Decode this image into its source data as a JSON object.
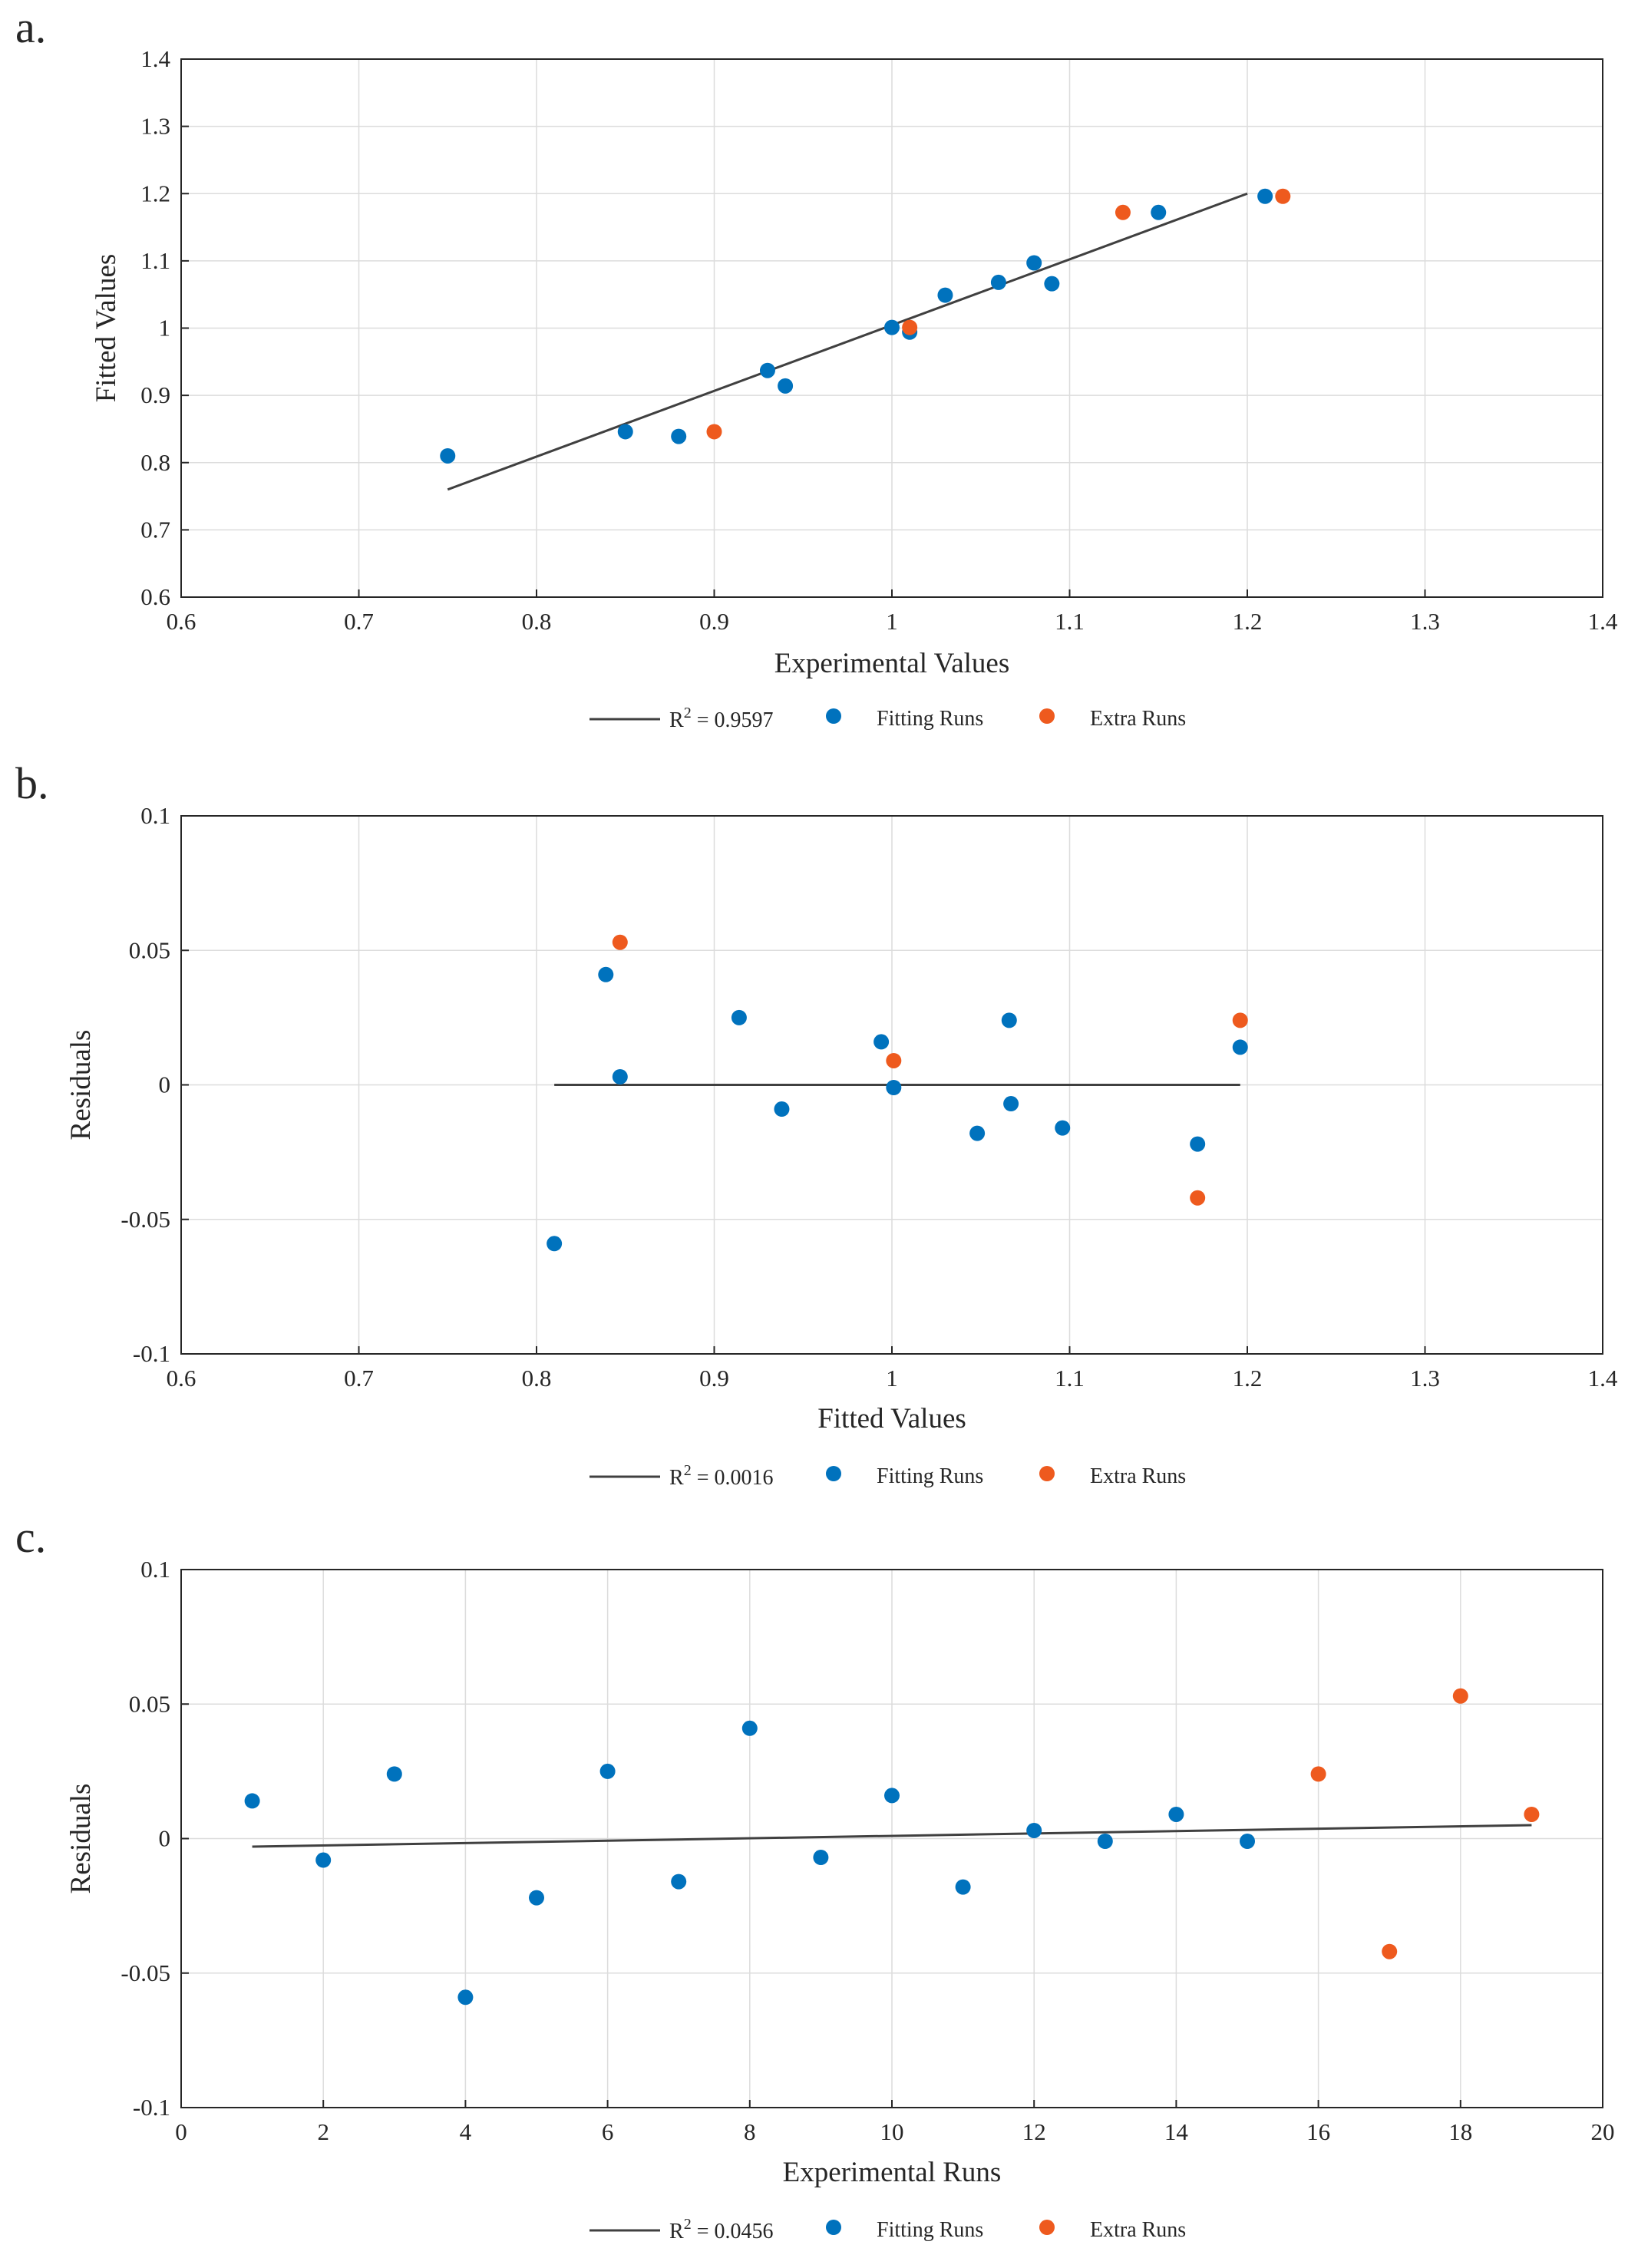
{
  "figure": {
    "colors": {
      "fitting": "#0072BD",
      "extra": "#EE5A1E",
      "fit_line": "#404040",
      "grid": "#dcdcdc",
      "axis": "#262626"
    }
  },
  "chart_data": [
    {
      "panel": "a.",
      "type": "scatter",
      "xlabel": "Experimental Values",
      "ylabel": "Fitted Values",
      "xlim": [
        0.6,
        1.4
      ],
      "ylim": [
        0.6,
        1.4
      ],
      "xticks": [
        0.6,
        0.7,
        0.8,
        0.9,
        1,
        1.1,
        1.2,
        1.3,
        1.4
      ],
      "yticks": [
        0.6,
        0.7,
        0.8,
        0.9,
        1,
        1.1,
        1.2,
        1.3,
        1.4
      ],
      "xtick_labels": [
        "0.6",
        "0.7",
        "0.8",
        "0.9",
        "1",
        "1.1",
        "1.2",
        "1.3",
        "1.4"
      ],
      "ytick_labels": [
        "0.6",
        "0.7",
        "0.8",
        "0.9",
        "1",
        "1.1",
        "1.2",
        "1.3",
        "1.4"
      ],
      "grid": true,
      "legend": {
        "line_prefix": "R",
        "line_sup": "2",
        "line_value": " = 0.9597",
        "fitting_label": "Fitting Runs",
        "extra_label": "Extra Runs"
      },
      "fit_line": {
        "x": [
          0.75,
          1.2
        ],
        "y": [
          0.76,
          1.2
        ]
      },
      "series": [
        {
          "name": "Fitting Runs",
          "x": [
            0.75,
            0.85,
            0.88,
            0.93,
            0.94,
            1.0,
            1.01,
            1.03,
            1.06,
            1.08,
            1.09,
            1.15,
            1.21
          ],
          "y": [
            0.81,
            0.846,
            0.839,
            0.937,
            0.914,
            1.001,
            0.994,
            1.049,
            1.068,
            1.097,
            1.066,
            1.172,
            1.196
          ]
        },
        {
          "name": "Extra Runs",
          "x": [
            0.9,
            1.01,
            1.13,
            1.22
          ],
          "y": [
            0.846,
            1.001,
            1.172,
            1.196
          ]
        }
      ]
    },
    {
      "panel": "b.",
      "type": "scatter",
      "xlabel": "Fitted Values",
      "ylabel": "Residuals",
      "xlim": [
        0.6,
        1.4
      ],
      "ylim": [
        -0.1,
        0.1
      ],
      "xticks": [
        0.6,
        0.7,
        0.8,
        0.9,
        1,
        1.1,
        1.2,
        1.3,
        1.4
      ],
      "yticks": [
        -0.1,
        -0.05,
        0,
        0.05,
        0.1
      ],
      "xtick_labels": [
        "0.6",
        "0.7",
        "0.8",
        "0.9",
        "1",
        "1.1",
        "1.2",
        "1.3",
        "1.4"
      ],
      "ytick_labels": [
        "-0.1",
        "-0.05",
        "0",
        "0.05",
        "0.1"
      ],
      "grid": true,
      "legend": {
        "line_prefix": "R",
        "line_sup": "2",
        "line_value": " = 0.0016",
        "fitting_label": "Fitting Runs",
        "extra_label": "Extra Runs"
      },
      "fit_line": {
        "x": [
          0.81,
          1.196
        ],
        "y": [
          0,
          0
        ]
      },
      "series": [
        {
          "name": "Fitting Runs",
          "x": [
            0.81,
            0.839,
            0.847,
            0.914,
            0.938,
            0.994,
            1.001,
            1.048,
            1.066,
            1.067,
            1.096,
            1.172,
            1.196
          ],
          "y": [
            -0.059,
            0.041,
            0.003,
            0.025,
            -0.009,
            0.016,
            -0.001,
            -0.018,
            0.024,
            -0.007,
            -0.016,
            -0.022,
            0.014
          ]
        },
        {
          "name": "Extra Runs",
          "x": [
            0.847,
            1.001,
            1.172,
            1.196
          ],
          "y": [
            0.053,
            0.009,
            -0.042,
            0.024
          ]
        }
      ]
    },
    {
      "panel": "c.",
      "type": "scatter",
      "xlabel": "Experimental Runs",
      "ylabel": "Residuals",
      "xlim": [
        0,
        20
      ],
      "ylim": [
        -0.1,
        0.1
      ],
      "xticks": [
        0,
        2,
        4,
        6,
        8,
        10,
        12,
        14,
        16,
        18,
        20
      ],
      "yticks": [
        -0.1,
        -0.05,
        0,
        0.05,
        0.1
      ],
      "xtick_labels": [
        "0",
        "2",
        "4",
        "6",
        "8",
        "10",
        "12",
        "14",
        "16",
        "18",
        "20"
      ],
      "ytick_labels": [
        "-0.1",
        "-0.05",
        "0",
        "0.05",
        "0.1"
      ],
      "grid": true,
      "legend": {
        "line_prefix": "R",
        "line_sup": "2",
        "line_value": " = 0.0456",
        "fitting_label": "Fitting Runs",
        "extra_label": "Extra Runs"
      },
      "fit_line": {
        "x": [
          1,
          19
        ],
        "y": [
          -0.003,
          0.005
        ]
      },
      "series": [
        {
          "name": "Fitting Runs",
          "x": [
            1,
            2,
            3,
            4,
            5,
            6,
            7,
            8,
            9,
            10,
            11,
            12,
            13,
            14,
            15
          ],
          "y": [
            0.014,
            -0.008,
            0.024,
            -0.059,
            -0.022,
            0.025,
            -0.016,
            0.041,
            -0.007,
            0.016,
            -0.018,
            0.003,
            -0.001,
            0.009,
            -0.001
          ]
        },
        {
          "name": "Extra Runs",
          "x": [
            16,
            17,
            18,
            19
          ],
          "y": [
            0.024,
            -0.042,
            0.053,
            0.009
          ]
        }
      ]
    }
  ]
}
